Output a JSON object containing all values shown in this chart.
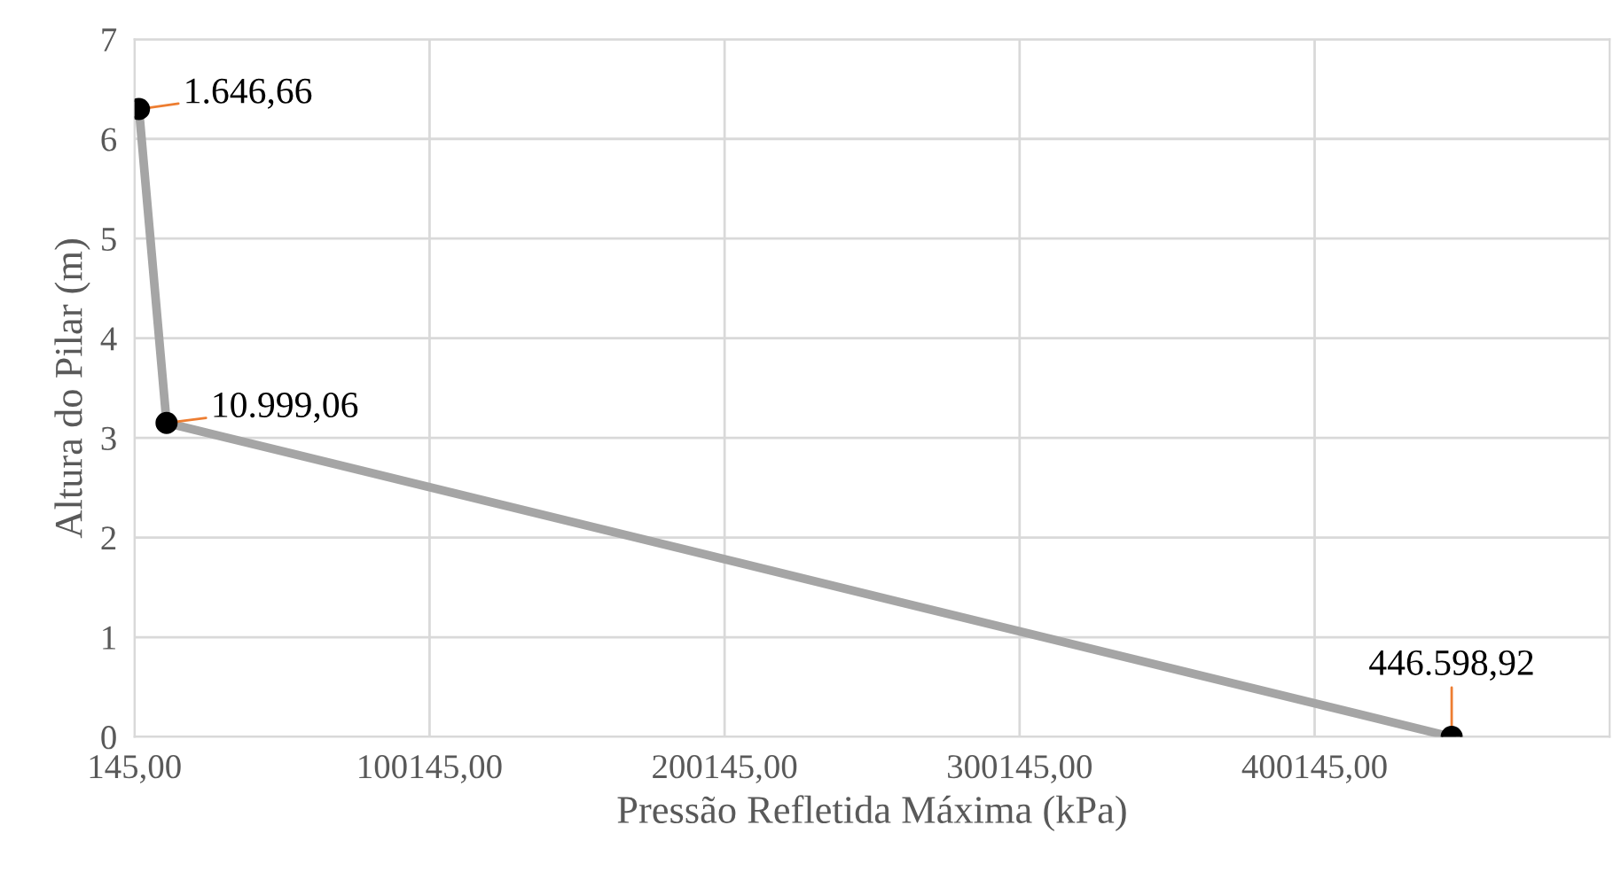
{
  "chart_data": {
    "type": "line",
    "xlabel": "Pressão Refletida Máxima (kPa)",
    "ylabel": "Altura do Pilar (m)",
    "x": [
      1646.66,
      10999.06,
      446598.92
    ],
    "series": [
      {
        "color": "#a5a5a5",
        "values": [
          6.3,
          3.15,
          0
        ]
      }
    ],
    "annotations": [
      {
        "text": "1.646,66",
        "x": 1646.66,
        "y": 6.3
      },
      {
        "text": "10.999,06",
        "x": 10999.06,
        "y": 3.15
      },
      {
        "text": "446.598,92",
        "x": 446598.92,
        "y": 0
      }
    ],
    "marker": "circle",
    "xlim": [
      145,
      500145
    ],
    "xticks": [
      {
        "value": 145,
        "label": "145,00"
      },
      {
        "value": 100145,
        "label": "100145,00"
      },
      {
        "value": 200145,
        "label": "200145,00"
      },
      {
        "value": 300145,
        "label": "300145,00"
      },
      {
        "value": 400145,
        "label": "400145,00"
      }
    ],
    "ylim": [
      0,
      7
    ],
    "yticks": [
      0,
      1,
      2,
      3,
      4,
      5,
      6,
      7
    ],
    "grid": true,
    "legend": false
  }
}
